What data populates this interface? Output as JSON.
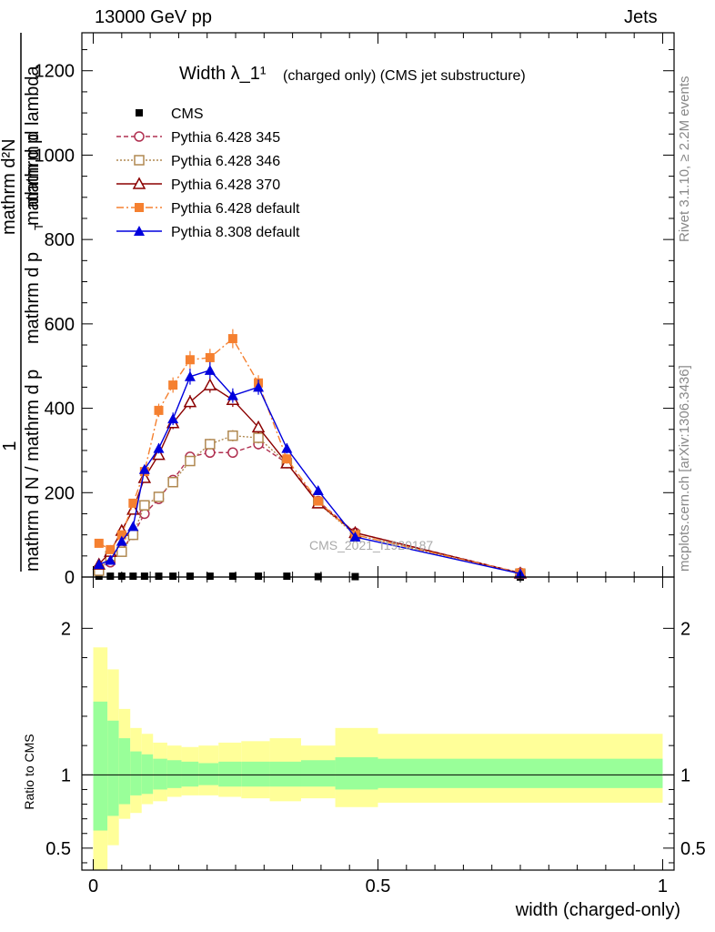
{
  "header": {
    "left": "13000 GeV pp",
    "right": "Jets"
  },
  "side": {
    "rivet": "Rivet 3.1.10, ≥ 2.2M events",
    "mcplots": "mcplots.cern.ch [arXiv:1306.3436]"
  },
  "chart_data": {
    "type": "scatter",
    "title": "Width λ_1¹",
    "subtitle": "(charged only) (CMS jet substructure)",
    "watermark": "CMS_2021_I1920187",
    "xlabel": "width (charged-only)",
    "ylabel_main_parts": [
      "1",
      "mathrm d N / mathrm d p",
      "mathrm d p",
      "T",
      "mathrm d²N",
      "mathrm d p",
      "mathrm d lambda",
      "T"
    ],
    "ylabel_ratio": "Ratio to CMS",
    "xlim": [
      -0.02,
      1.02
    ],
    "ylim_main": [
      0,
      1290
    ],
    "ylim_ratio": [
      0.35,
      2.35
    ],
    "x_ticks": [
      "0",
      "0.5",
      "1"
    ],
    "y_ticks_main": [
      "0",
      "200",
      "400",
      "600",
      "800",
      "1000",
      "1200"
    ],
    "y_ticks_ratio": [
      "0.5",
      "1",
      "2"
    ],
    "legend_position": "top-left",
    "series": [
      {
        "name": "CMS",
        "style": "cms",
        "color": "#000000",
        "x": [
          0.01,
          0.03,
          0.05,
          0.07,
          0.09,
          0.115,
          0.14,
          0.17,
          0.205,
          0.245,
          0.29,
          0.34,
          0.395,
          0.46,
          0.75
        ],
        "y": [
          2,
          2,
          2,
          2,
          2,
          2,
          2,
          2,
          2,
          2,
          2,
          2,
          1,
          1,
          0
        ]
      },
      {
        "name": "Pythia 6.428 345",
        "style": "p345",
        "color": "#b03050",
        "x": [
          0.01,
          0.03,
          0.05,
          0.07,
          0.09,
          0.115,
          0.14,
          0.17,
          0.205,
          0.245,
          0.29,
          0.34,
          0.395,
          0.46,
          0.75
        ],
        "y": [
          20,
          35,
          65,
          100,
          150,
          185,
          230,
          285,
          295,
          295,
          315,
          270,
          180,
          105,
          10
        ]
      },
      {
        "name": "Pythia 6.428 346",
        "style": "p346",
        "color": "#b08850",
        "x": [
          0.01,
          0.03,
          0.05,
          0.07,
          0.09,
          0.115,
          0.14,
          0.17,
          0.205,
          0.245,
          0.29,
          0.34,
          0.395,
          0.46,
          0.75
        ],
        "y": [
          15,
          50,
          60,
          100,
          170,
          190,
          225,
          275,
          315,
          335,
          330,
          270,
          175,
          100,
          8
        ]
      },
      {
        "name": "Pythia 6.428 370",
        "style": "p370",
        "color": "#8b0000",
        "x": [
          0.01,
          0.03,
          0.05,
          0.07,
          0.09,
          0.115,
          0.14,
          0.17,
          0.205,
          0.245,
          0.29,
          0.34,
          0.395,
          0.46,
          0.75
        ],
        "y": [
          30,
          60,
          110,
          160,
          235,
          290,
          365,
          415,
          455,
          420,
          355,
          270,
          175,
          105,
          9
        ]
      },
      {
        "name": "Pythia 6.428 default",
        "style": "p6def",
        "color": "#f58030",
        "x": [
          0.01,
          0.03,
          0.05,
          0.07,
          0.09,
          0.115,
          0.14,
          0.17,
          0.205,
          0.245,
          0.29,
          0.34,
          0.395,
          0.46,
          0.75
        ],
        "y": [
          80,
          65,
          100,
          175,
          250,
          395,
          455,
          515,
          520,
          565,
          460,
          280,
          180,
          100,
          10
        ]
      },
      {
        "name": "Pythia 8.308 default",
        "style": "p8def",
        "color": "#0000dd",
        "x": [
          0.01,
          0.03,
          0.05,
          0.07,
          0.09,
          0.115,
          0.14,
          0.17,
          0.205,
          0.245,
          0.29,
          0.34,
          0.395,
          0.46,
          0.75
        ],
        "y": [
          30,
          40,
          85,
          120,
          255,
          305,
          375,
          475,
          490,
          430,
          450,
          305,
          205,
          95,
          8
        ]
      }
    ],
    "ratio_bands": {
      "edges": [
        0.0,
        0.025,
        0.045,
        0.065,
        0.085,
        0.105,
        0.13,
        0.155,
        0.185,
        0.22,
        0.26,
        0.31,
        0.365,
        0.425,
        0.5,
        1.0
      ],
      "inner": [
        [
          0.62,
          1.5
        ],
        [
          0.72,
          1.37
        ],
        [
          0.8,
          1.25
        ],
        [
          0.86,
          1.16
        ],
        [
          0.87,
          1.14
        ],
        [
          0.9,
          1.11
        ],
        [
          0.91,
          1.1
        ],
        [
          0.92,
          1.09
        ],
        [
          0.93,
          1.08
        ],
        [
          0.92,
          1.09
        ],
        [
          0.92,
          1.09
        ],
        [
          0.92,
          1.09
        ],
        [
          0.92,
          1.1
        ],
        [
          0.9,
          1.12
        ],
        [
          0.91,
          1.11
        ]
      ],
      "outer": [
        [
          0.35,
          1.87
        ],
        [
          0.52,
          1.72
        ],
        [
          0.7,
          1.45
        ],
        [
          0.74,
          1.32
        ],
        [
          0.8,
          1.28
        ],
        [
          0.82,
          1.22
        ],
        [
          0.85,
          1.2
        ],
        [
          0.86,
          1.19
        ],
        [
          0.86,
          1.2
        ],
        [
          0.85,
          1.22
        ],
        [
          0.84,
          1.23
        ],
        [
          0.82,
          1.25
        ],
        [
          0.84,
          1.2
        ],
        [
          0.78,
          1.32
        ],
        [
          0.81,
          1.28
        ]
      ],
      "inner_color": "#99ff99",
      "outer_color": "#ffff99"
    }
  }
}
